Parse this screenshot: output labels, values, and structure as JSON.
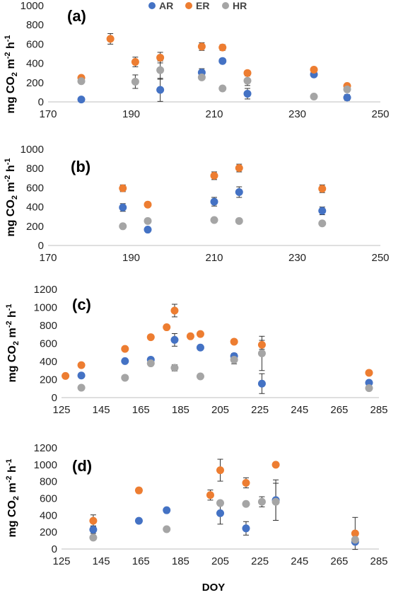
{
  "legend": [
    {
      "name": "AR",
      "color": "#4472C4"
    },
    {
      "name": "ER",
      "color": "#ED7D31"
    },
    {
      "name": "HR",
      "color": "#A5A5A5"
    }
  ],
  "xlabel": "DOY",
  "chart_data": [
    {
      "type": "scatter",
      "panel": "(a)",
      "ylabel": "mg CO2 m-2 h-1",
      "xlim": [
        170,
        250
      ],
      "xticks": [
        170,
        190,
        210,
        230,
        250
      ],
      "ylim": [
        0,
        1000
      ],
      "yticks": [
        0,
        200,
        400,
        600,
        800,
        1000
      ],
      "grid": false,
      "series": [
        {
          "name": "AR",
          "points": [
            {
              "x": 178,
              "y": 25,
              "err": 20
            },
            {
              "x": 197,
              "y": 125,
              "err": 120
            },
            {
              "x": 207,
              "y": 305,
              "err": 40
            },
            {
              "x": 212,
              "y": 425,
              "err": 25
            },
            {
              "x": 218,
              "y": 85,
              "err": 55
            },
            {
              "x": 234,
              "y": 285,
              "err": 25
            },
            {
              "x": 242,
              "y": 45,
              "err": 30
            }
          ]
        },
        {
          "name": "ER",
          "points": [
            {
              "x": 178,
              "y": 250,
              "err": 15
            },
            {
              "x": 185,
              "y": 655,
              "err": 55
            },
            {
              "x": 191,
              "y": 415,
              "err": 50
            },
            {
              "x": 197,
              "y": 460,
              "err": 55
            },
            {
              "x": 207,
              "y": 575,
              "err": 40
            },
            {
              "x": 212,
              "y": 565,
              "err": 30
            },
            {
              "x": 218,
              "y": 300,
              "err": 20
            },
            {
              "x": 234,
              "y": 335,
              "err": 25
            },
            {
              "x": 242,
              "y": 165,
              "err": 20
            }
          ]
        },
        {
          "name": "HR",
          "points": [
            {
              "x": 178,
              "y": 215,
              "err": 20
            },
            {
              "x": 191,
              "y": 210,
              "err": 70
            },
            {
              "x": 197,
              "y": 330,
              "err": 95
            },
            {
              "x": 207,
              "y": 255,
              "err": 20
            },
            {
              "x": 212,
              "y": 140,
              "err": 10
            },
            {
              "x": 218,
              "y": 220,
              "err": 50
            },
            {
              "x": 234,
              "y": 55,
              "err": 10
            },
            {
              "x": 242,
              "y": 130,
              "err": 15
            }
          ]
        }
      ]
    },
    {
      "type": "scatter",
      "panel": "(b)",
      "ylabel": "mg CO2 m-2 h-1",
      "xlim": [
        170,
        250
      ],
      "xticks": [
        170,
        190,
        210,
        230,
        250
      ],
      "ylim": [
        0,
        1000
      ],
      "yticks": [
        0,
        200,
        400,
        600,
        800,
        1000
      ],
      "grid": false,
      "series": [
        {
          "name": "AR",
          "points": [
            {
              "x": 188,
              "y": 395,
              "err": 40
            },
            {
              "x": 194,
              "y": 165,
              "err": 25
            },
            {
              "x": 210,
              "y": 455,
              "err": 45
            },
            {
              "x": 216,
              "y": 555,
              "err": 55
            },
            {
              "x": 236,
              "y": 360,
              "err": 40
            }
          ]
        },
        {
          "name": "ER",
          "points": [
            {
              "x": 188,
              "y": 595,
              "err": 35
            },
            {
              "x": 194,
              "y": 425,
              "err": 20
            },
            {
              "x": 210,
              "y": 725,
              "err": 40
            },
            {
              "x": 216,
              "y": 805,
              "err": 40
            },
            {
              "x": 236,
              "y": 590,
              "err": 40
            }
          ]
        },
        {
          "name": "HR",
          "points": [
            {
              "x": 188,
              "y": 200,
              "err": 10
            },
            {
              "x": 194,
              "y": 255,
              "err": 15
            },
            {
              "x": 210,
              "y": 265,
              "err": 10
            },
            {
              "x": 216,
              "y": 255,
              "err": 20
            },
            {
              "x": 236,
              "y": 230,
              "err": 20
            }
          ]
        }
      ]
    },
    {
      "type": "scatter",
      "panel": "(c)",
      "ylabel": "mg CO2 m-2 h-1",
      "xlim": [
        125,
        285
      ],
      "xticks": [
        125,
        145,
        165,
        185,
        205,
        225,
        245,
        265,
        285
      ],
      "ylim": [
        0,
        1200
      ],
      "yticks": [
        0,
        200,
        400,
        600,
        800,
        1000,
        1200
      ],
      "grid": false,
      "series": [
        {
          "name": "AR",
          "points": [
            {
              "x": 135,
              "y": 245,
              "err": 20
            },
            {
              "x": 157,
              "y": 405,
              "err": 20
            },
            {
              "x": 170,
              "y": 420,
              "err": 25
            },
            {
              "x": 182,
              "y": 640,
              "err": 70
            },
            {
              "x": 195,
              "y": 555,
              "err": 20
            },
            {
              "x": 212,
              "y": 460,
              "err": 30
            },
            {
              "x": 226,
              "y": 155,
              "err": 110
            },
            {
              "x": 280,
              "y": 165,
              "err": 20
            }
          ]
        },
        {
          "name": "ER",
          "points": [
            {
              "x": 127,
              "y": 240,
              "err": 10
            },
            {
              "x": 135,
              "y": 360,
              "err": 20
            },
            {
              "x": 157,
              "y": 540,
              "err": 20
            },
            {
              "x": 170,
              "y": 670,
              "err": 20
            },
            {
              "x": 178,
              "y": 780,
              "err": 15
            },
            {
              "x": 182,
              "y": 965,
              "err": 70
            },
            {
              "x": 190,
              "y": 680,
              "err": 20
            },
            {
              "x": 195,
              "y": 705,
              "err": 20
            },
            {
              "x": 212,
              "y": 620,
              "err": 20
            },
            {
              "x": 226,
              "y": 585,
              "err": 50
            },
            {
              "x": 280,
              "y": 275,
              "err": 20
            }
          ]
        },
        {
          "name": "HR",
          "points": [
            {
              "x": 135,
              "y": 110,
              "err": 10
            },
            {
              "x": 157,
              "y": 220,
              "err": 10
            },
            {
              "x": 170,
              "y": 380,
              "err": 15
            },
            {
              "x": 182,
              "y": 330,
              "err": 35
            },
            {
              "x": 195,
              "y": 235,
              "err": 10
            },
            {
              "x": 212,
              "y": 420,
              "err": 45
            },
            {
              "x": 226,
              "y": 490,
              "err": 190
            },
            {
              "x": 280,
              "y": 105,
              "err": 10
            }
          ]
        }
      ]
    },
    {
      "type": "scatter",
      "panel": "(d)",
      "ylabel": "mg CO2 m-2 h-1",
      "xlim": [
        125,
        285
      ],
      "xticks": [
        125,
        145,
        165,
        185,
        205,
        225,
        245,
        265,
        285
      ],
      "ylim": [
        0,
        1200
      ],
      "yticks": [
        0,
        200,
        400,
        600,
        800,
        1000,
        1200
      ],
      "grid": false,
      "series": [
        {
          "name": "AR",
          "points": [
            {
              "x": 141,
              "y": 230,
              "err": 45
            },
            {
              "x": 164,
              "y": 335,
              "err": 25
            },
            {
              "x": 178,
              "y": 460,
              "err": 15
            },
            {
              "x": 205,
              "y": 425,
              "err": 130
            },
            {
              "x": 218,
              "y": 245,
              "err": 80
            },
            {
              "x": 233,
              "y": 580,
              "err": 240
            },
            {
              "x": 273,
              "y": 85,
              "err": 20
            }
          ]
        },
        {
          "name": "ER",
          "points": [
            {
              "x": 141,
              "y": 335,
              "err": 70
            },
            {
              "x": 164,
              "y": 695,
              "err": 30
            },
            {
              "x": 200,
              "y": 640,
              "err": 60
            },
            {
              "x": 205,
              "y": 935,
              "err": 130
            },
            {
              "x": 218,
              "y": 785,
              "err": 60
            },
            {
              "x": 233,
              "y": 1000,
              "err": 20
            },
            {
              "x": 273,
              "y": 185,
              "err": 190
            }
          ]
        },
        {
          "name": "HR",
          "points": [
            {
              "x": 141,
              "y": 135,
              "err": 15
            },
            {
              "x": 178,
              "y": 235,
              "err": 15
            },
            {
              "x": 205,
              "y": 545,
              "err": 20
            },
            {
              "x": 218,
              "y": 535,
              "err": 20
            },
            {
              "x": 226,
              "y": 560,
              "err": 60
            },
            {
              "x": 233,
              "y": 560,
              "err": 220
            },
            {
              "x": 273,
              "y": 110,
              "err": 20
            }
          ]
        }
      ]
    }
  ]
}
